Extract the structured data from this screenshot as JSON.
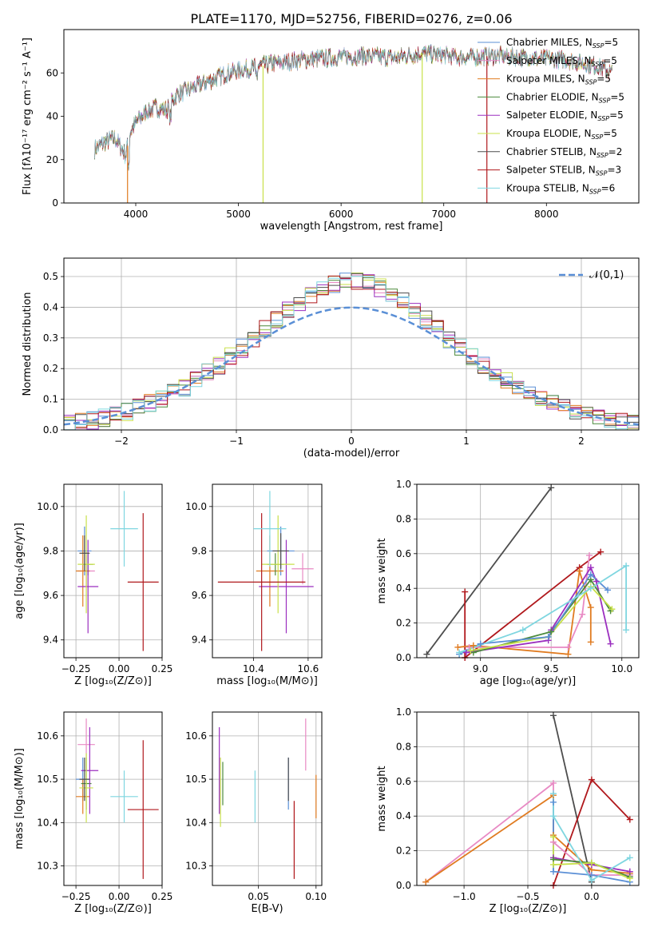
{
  "title": "PLATE=1170, MJD=52756, FIBERID=0276, z=0.06",
  "colors": {
    "chabrier_miles": "#5a8fd6",
    "salpeter_miles": "#e88ac4",
    "kroupa_miles": "#e07b20",
    "chabrier_elodie": "#4c8a3c",
    "salpeter_elodie": "#9b2fbf",
    "kroupa_elodie": "#c8e04a",
    "chabrier_stelib": "#4d4d4d",
    "salpeter_stelib": "#b0181c",
    "kroupa_stelib": "#7fd6e0"
  },
  "chart_data": [
    {
      "id": "spectrum",
      "type": "line",
      "xlabel": "wavelength [Angstrom, rest frame]",
      "ylabel": "Flux [fλ10⁻¹⁷ erg cm⁻² s⁻¹ A⁻¹]",
      "xlim": [
        3300,
        8900
      ],
      "ylim": [
        0,
        80
      ],
      "xticks": [
        "4000",
        "5000",
        "6000",
        "7000",
        "8000"
      ],
      "yticks": [
        "0",
        "20",
        "40",
        "60"
      ],
      "legend_position": "top-right",
      "legend": [
        "Chabrier MILES, N_SSP=5",
        "Salpeter MILES, N_SSP=5",
        "Kroupa MILES, N_SSP=5",
        "Chabrier ELODIE, N_SSP=5",
        "Salpeter ELODIE, N_SSP=5",
        "Kroupa ELODIE, N_SSP=5",
        "Chabrier STELIB, N_SSP=2",
        "Salpeter STELIB, N_SSP=3",
        "Kroupa STELIB, N_SSP=6"
      ],
      "continuum": [
        [
          3600,
          25
        ],
        [
          3700,
          28
        ],
        [
          3800,
          30
        ],
        [
          3900,
          22
        ],
        [
          3950,
          33
        ],
        [
          4000,
          37
        ],
        [
          4100,
          42
        ],
        [
          4200,
          44
        ],
        [
          4300,
          43
        ],
        [
          4400,
          50
        ],
        [
          4500,
          52
        ],
        [
          4700,
          56
        ],
        [
          4900,
          60
        ],
        [
          5100,
          62
        ],
        [
          5300,
          64
        ],
        [
          5600,
          66
        ],
        [
          5900,
          67
        ],
        [
          6200,
          68
        ],
        [
          6500,
          67
        ],
        [
          6800,
          69
        ],
        [
          7000,
          68
        ],
        [
          7200,
          67
        ],
        [
          7500,
          68
        ],
        [
          7800,
          67
        ],
        [
          8200,
          66
        ],
        [
          8500,
          63
        ],
        [
          8640,
          60
        ]
      ],
      "dropouts": [
        [
          3920,
          "#e07b20"
        ],
        [
          5240,
          "#c8e04a"
        ],
        [
          6790,
          "#c8e04a"
        ],
        [
          7420,
          "#b0181c"
        ]
      ],
      "grid": false
    },
    {
      "id": "residuals",
      "type": "histogram",
      "xlabel": "(data-model)/error",
      "ylabel": "Normed distribution",
      "xlim": [
        -2.5,
        2.5
      ],
      "ylim": [
        0,
        0.56
      ],
      "xticks": [
        "−2",
        "−1",
        "0",
        "1",
        "2"
      ],
      "yticks": [
        "0.0",
        "0.1",
        "0.2",
        "0.3",
        "0.4",
        "0.5"
      ],
      "bin_width": 0.1,
      "legend": "𝒩(0,1)",
      "legend_position": "top-right",
      "grid": true
    },
    {
      "id": "age-vs-z",
      "type": "errorbar",
      "xlabel": "Z [log₁₀(Z/Z⊙)]",
      "ylabel": "age  [log₁₀(age/yr)]",
      "xlim": [
        -0.32,
        0.25
      ],
      "ylim": [
        9.32,
        10.1
      ],
      "xticks": [
        "−0.25",
        "0.00",
        "0.25"
      ],
      "yticks": [
        "9.4",
        "9.6",
        "9.8",
        "10.0"
      ],
      "points": [
        {
          "x": -0.2,
          "y": 9.8,
          "xe": 0.04,
          "ye": 0.11,
          "c": "chabrier_miles"
        },
        {
          "x": -0.19,
          "y": 9.71,
          "xe": 0.05,
          "ye": 0.07,
          "c": "salpeter_miles"
        },
        {
          "x": -0.21,
          "y": 9.71,
          "xe": 0.04,
          "ye": 0.16,
          "c": "kroupa_miles"
        },
        {
          "x": -0.18,
          "y": 9.74,
          "xe": 0.03,
          "ye": 0.05,
          "c": "chabrier_elodie"
        },
        {
          "x": -0.18,
          "y": 9.64,
          "xe": 0.06,
          "ye": 0.21,
          "c": "salpeter_elodie"
        },
        {
          "x": -0.19,
          "y": 9.74,
          "xe": 0.05,
          "ye": 0.22,
          "c": "kroupa_elodie"
        },
        {
          "x": -0.2,
          "y": 9.79,
          "xe": 0.03,
          "ye": 0.08,
          "c": "chabrier_stelib"
        },
        {
          "x": 0.14,
          "y": 9.66,
          "xe": 0.09,
          "ye": 0.31,
          "c": "salpeter_stelib"
        },
        {
          "x": 0.03,
          "y": 9.9,
          "xe": 0.08,
          "ye": 0.17,
          "c": "kroupa_stelib"
        }
      ],
      "grid": true
    },
    {
      "id": "age-vs-mass",
      "type": "errorbar",
      "xlabel": "mass [log₁₀(M/M⊙)]",
      "ylabel": "",
      "xlim": [
        10.25,
        10.65
      ],
      "ylim": [
        9.32,
        10.1
      ],
      "xticks": [
        "10.4",
        "10.6"
      ],
      "yticks": [
        "9.4",
        "9.6",
        "9.8",
        "10.0"
      ],
      "points": [
        {
          "x": 10.5,
          "y": 9.8,
          "xe": 0.05,
          "ye": 0.11,
          "c": "chabrier_miles"
        },
        {
          "x": 10.58,
          "y": 9.72,
          "xe": 0.04,
          "ye": 0.07,
          "c": "salpeter_miles"
        },
        {
          "x": 10.46,
          "y": 9.71,
          "xe": 0.05,
          "ye": 0.16,
          "c": "kroupa_miles"
        },
        {
          "x": 10.48,
          "y": 9.74,
          "xe": 0.03,
          "ye": 0.05,
          "c": "chabrier_elodie"
        },
        {
          "x": 10.52,
          "y": 9.64,
          "xe": 0.1,
          "ye": 0.21,
          "c": "salpeter_elodie"
        },
        {
          "x": 10.49,
          "y": 9.74,
          "xe": 0.06,
          "ye": 0.22,
          "c": "kroupa_elodie"
        },
        {
          "x": 10.5,
          "y": 9.8,
          "xe": 0.03,
          "ye": 0.08,
          "c": "chabrier_stelib"
        },
        {
          "x": 10.43,
          "y": 9.66,
          "xe": 0.16,
          "ye": 0.31,
          "c": "salpeter_stelib"
        },
        {
          "x": 10.46,
          "y": 9.9,
          "xe": 0.06,
          "ye": 0.17,
          "c": "kroupa_stelib"
        }
      ],
      "grid": true
    },
    {
      "id": "weight-vs-age",
      "type": "line",
      "xlabel": "age  [log₁₀(age/yr)]",
      "ylabel": "mass weight",
      "xlim": [
        8.55,
        10.12
      ],
      "ylim": [
        0,
        1
      ],
      "xticks": [
        "9.0",
        "9.5",
        "10.0"
      ],
      "yticks": [
        "0.0",
        "0.2",
        "0.4",
        "0.6",
        "0.8",
        "1.0"
      ],
      "series": [
        {
          "c": "chabrier_stelib",
          "points": [
            [
              8.62,
              0.02
            ],
            [
              9.5,
              0.98
            ]
          ]
        },
        {
          "c": "salpeter_stelib",
          "points": [
            [
              8.89,
              0.38
            ],
            [
              8.89,
              0.0
            ],
            [
              9.7,
              0.52
            ],
            [
              9.85,
              0.61
            ]
          ]
        },
        {
          "c": "kroupa_miles",
          "points": [
            [
              8.84,
              0.06
            ],
            [
              8.95,
              0.07
            ],
            [
              9.62,
              0.02
            ],
            [
              9.7,
              0.5
            ],
            [
              9.78,
              0.29
            ],
            [
              9.78,
              0.09
            ]
          ]
        },
        {
          "c": "salpeter_miles",
          "points": [
            [
              8.92,
              0.06
            ],
            [
              9.62,
              0.06
            ],
            [
              9.72,
              0.25
            ],
            [
              9.77,
              0.59
            ]
          ]
        },
        {
          "c": "salpeter_elodie",
          "points": [
            [
              8.9,
              0.03
            ],
            [
              9.48,
              0.1
            ],
            [
              9.5,
              0.16
            ],
            [
              9.78,
              0.52
            ],
            [
              9.82,
              0.44
            ],
            [
              9.92,
              0.08
            ]
          ]
        },
        {
          "c": "chabrier_elodie",
          "points": [
            [
              8.95,
              0.03
            ],
            [
              9.5,
              0.15
            ],
            [
              9.78,
              0.45
            ],
            [
              9.92,
              0.27
            ]
          ]
        },
        {
          "c": "kroupa_elodie",
          "points": [
            [
              8.93,
              0.04
            ],
            [
              9.48,
              0.12
            ],
            [
              9.78,
              0.41
            ],
            [
              9.93,
              0.28
            ]
          ]
        },
        {
          "c": "chabrier_miles",
          "points": [
            [
              8.85,
              0.02
            ],
            [
              9.0,
              0.08
            ],
            [
              9.48,
              0.12
            ],
            [
              9.78,
              0.48
            ],
            [
              9.9,
              0.39
            ]
          ]
        },
        {
          "c": "kroupa_stelib",
          "points": [
            [
              8.85,
              0.03
            ],
            [
              9.3,
              0.16
            ],
            [
              9.78,
              0.4
            ],
            [
              10.03,
              0.53
            ],
            [
              10.03,
              0.16
            ]
          ]
        }
      ],
      "grid": true
    },
    {
      "id": "mass-vs-z",
      "type": "errorbar",
      "xlabel": "Z [log₁₀(Z/Z⊙)]",
      "ylabel": "mass [log₁₀(M/M⊙)]",
      "xlim": [
        -0.32,
        0.25
      ],
      "ylim": [
        10.255,
        10.655
      ],
      "xticks": [
        "−0.25",
        "0.00",
        "0.25"
      ],
      "yticks": [
        "10.3",
        "10.4",
        "10.5",
        "10.6"
      ],
      "points": [
        {
          "x": -0.21,
          "y": 10.5,
          "xe": 0.04,
          "ye": 0.05,
          "c": "chabrier_miles"
        },
        {
          "x": -0.19,
          "y": 10.58,
          "xe": 0.05,
          "ye": 0.06,
          "c": "salpeter_miles"
        },
        {
          "x": -0.21,
          "y": 10.46,
          "xe": 0.04,
          "ye": 0.04,
          "c": "kroupa_miles"
        },
        {
          "x": -0.19,
          "y": 10.49,
          "xe": 0.03,
          "ye": 0.06,
          "c": "chabrier_elodie"
        },
        {
          "x": -0.17,
          "y": 10.52,
          "xe": 0.05,
          "ye": 0.1,
          "c": "salpeter_elodie"
        },
        {
          "x": -0.19,
          "y": 10.48,
          "xe": 0.04,
          "ye": 0.08,
          "c": "kroupa_elodie"
        },
        {
          "x": -0.2,
          "y": 10.5,
          "xe": 0.03,
          "ye": 0.05,
          "c": "chabrier_stelib"
        },
        {
          "x": 0.14,
          "y": 10.43,
          "xe": 0.09,
          "ye": 0.16,
          "c": "salpeter_stelib"
        },
        {
          "x": 0.03,
          "y": 10.46,
          "xe": 0.08,
          "ye": 0.06,
          "c": "kroupa_stelib"
        }
      ],
      "grid": true
    },
    {
      "id": "mass-vs-ebv",
      "type": "errorbar",
      "xlabel": "E(B-V)",
      "ylabel": "",
      "xlim": [
        0.01,
        0.105
      ],
      "ylim": [
        10.255,
        10.655
      ],
      "xticks": [
        "0.05",
        "0.10"
      ],
      "yticks": [
        "10.3",
        "10.4",
        "10.5",
        "10.6"
      ],
      "points": [
        {
          "x": 0.076,
          "y": 10.49,
          "xe": 0,
          "ye": 0.06,
          "c": "chabrier_miles"
        },
        {
          "x": 0.091,
          "y": 10.58,
          "xe": 0,
          "ye": 0.06,
          "c": "salpeter_miles"
        },
        {
          "x": 0.1,
          "y": 10.46,
          "xe": 0,
          "ye": 0.05,
          "c": "kroupa_miles"
        },
        {
          "x": 0.019,
          "y": 10.49,
          "xe": 0,
          "ye": 0.05,
          "c": "chabrier_elodie"
        },
        {
          "x": 0.016,
          "y": 10.52,
          "xe": 0,
          "ye": 0.1,
          "c": "salpeter_elodie"
        },
        {
          "x": 0.017,
          "y": 10.47,
          "xe": 0,
          "ye": 0.08,
          "c": "kroupa_elodie"
        },
        {
          "x": 0.076,
          "y": 10.5,
          "xe": 0,
          "ye": 0.05,
          "c": "chabrier_stelib"
        },
        {
          "x": 0.081,
          "y": 10.36,
          "xe": 0,
          "ye": 0.09,
          "c": "salpeter_stelib"
        },
        {
          "x": 0.047,
          "y": 10.46,
          "xe": 0,
          "ye": 0.06,
          "c": "kroupa_stelib"
        }
      ],
      "grid": true
    },
    {
      "id": "weight-vs-z",
      "type": "line",
      "xlabel": "Z [log₁₀(Z/Z⊙)]",
      "ylabel": "mass weight",
      "xlim": [
        -1.37,
        0.37
      ],
      "ylim": [
        0,
        1
      ],
      "xticks": [
        "−1.0",
        "−0.5",
        "0.0"
      ],
      "yticks": [
        "0.0",
        "0.2",
        "0.4",
        "0.6",
        "0.8",
        "1.0"
      ],
      "series": [
        {
          "c": "chabrier_stelib",
          "points": [
            [
              -0.3,
              0.98
            ],
            [
              0.0,
              0.02
            ]
          ]
        },
        {
          "c": "salpeter_stelib",
          "points": [
            [
              -0.3,
              0.0
            ],
            [
              0.0,
              0.61
            ],
            [
              0.3,
              0.38
            ]
          ]
        },
        {
          "c": "salpeter_miles",
          "points": [
            [
              -1.3,
              0.02
            ],
            [
              -0.3,
              0.59
            ],
            [
              -0.3,
              0.25
            ],
            [
              0.0,
              0.06
            ],
            [
              0.3,
              0.06
            ]
          ]
        },
        {
          "c": "kroupa_miles",
          "points": [
            [
              -1.3,
              0.02
            ],
            [
              -0.3,
              0.52
            ],
            [
              -0.3,
              0.29
            ],
            [
              0.0,
              0.09
            ],
            [
              0.3,
              0.07
            ]
          ]
        },
        {
          "c": "chabrier_miles",
          "points": [
            [
              -0.3,
              0.48
            ],
            [
              -0.3,
              0.08
            ],
            [
              0.0,
              0.06
            ],
            [
              0.3,
              0.02
            ]
          ]
        },
        {
          "c": "salpeter_elodie",
          "points": [
            [
              -0.3,
              0.16
            ],
            [
              0.0,
              0.12
            ],
            [
              0.3,
              0.08
            ]
          ]
        },
        {
          "c": "chabrier_elodie",
          "points": [
            [
              -0.3,
              0.15
            ],
            [
              0.0,
              0.13
            ],
            [
              0.3,
              0.05
            ]
          ]
        },
        {
          "c": "kroupa_elodie",
          "points": [
            [
              -0.3,
              0.28
            ],
            [
              -0.3,
              0.12
            ],
            [
              0.0,
              0.13
            ],
            [
              0.3,
              0.04
            ]
          ]
        },
        {
          "c": "kroupa_stelib",
          "points": [
            [
              -0.3,
              0.53
            ],
            [
              -0.3,
              0.4
            ],
            [
              0.0,
              0.03
            ],
            [
              0.3,
              0.16
            ]
          ]
        }
      ],
      "grid": true
    }
  ]
}
